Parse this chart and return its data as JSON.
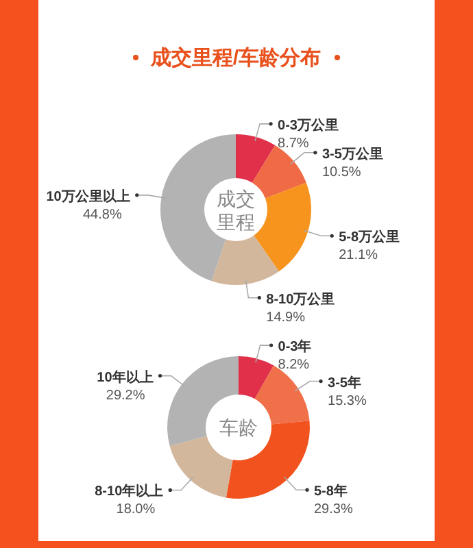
{
  "chart_data": [
    {
      "type": "donut",
      "title": "成交里程/车龄分布",
      "annotations": [
        "成交里程"
      ],
      "categories": [
        "0-3万公里",
        "3-5万公里",
        "5-8万公里",
        "8-10万公里",
        "10万公里以上"
      ],
      "values": [
        8.7,
        10.5,
        21.1,
        14.9,
        44.8
      ],
      "value_labels": [
        "8.7%",
        "10.5%",
        "21.1%",
        "14.9%",
        "44.8%"
      ],
      "colors": [
        "#e0304a",
        "#ef6a45",
        "#f7941d",
        "#d2b79c",
        "#b3b3b3"
      ]
    },
    {
      "type": "donut",
      "annotations": [
        "车龄"
      ],
      "categories": [
        "0-3年",
        "3-5年",
        "5-8年",
        "8-10年以上",
        "10年以上"
      ],
      "values": [
        8.2,
        15.3,
        29.3,
        18.0,
        29.2
      ],
      "value_labels": [
        "8.2%",
        "15.3%",
        "29.3%",
        "18.0%",
        "29.2%"
      ],
      "colors": [
        "#e0304a",
        "#f0704a",
        "#f2521e",
        "#d2b79c",
        "#b3b3b3"
      ]
    }
  ]
}
